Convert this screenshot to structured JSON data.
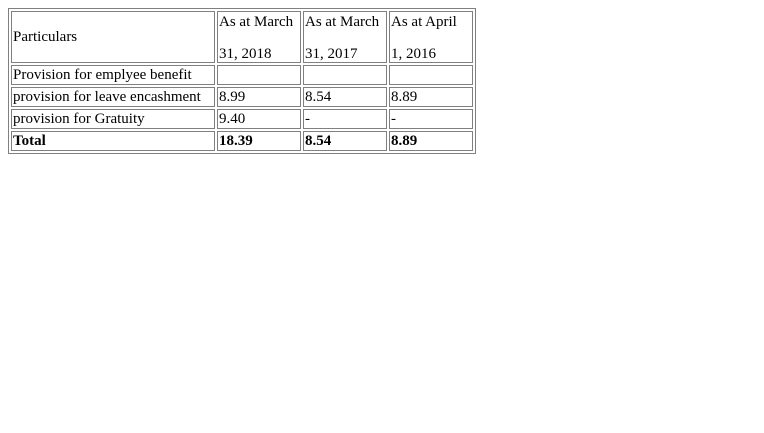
{
  "table": {
    "header": {
      "particulars": "Particulars",
      "columns": [
        {
          "line1": "As at March",
          "line2": "31, 2018"
        },
        {
          "line1": "As at March",
          "line2": "31, 2017"
        },
        {
          "line1": "As at April",
          "line2": "1, 2016"
        }
      ]
    },
    "rows": [
      {
        "label": "Provision for emplyee benefit",
        "values": [
          "",
          "",
          ""
        ]
      },
      {
        "label": "provision for leave encashment",
        "values": [
          "8.99",
          "8.54",
          "8.89"
        ]
      },
      {
        "label": "provision for Gratuity",
        "values": [
          "9.40",
          "-",
          "-"
        ]
      }
    ],
    "total": {
      "label": "Total",
      "values": [
        "18.39",
        "8.54",
        "8.89"
      ]
    }
  }
}
